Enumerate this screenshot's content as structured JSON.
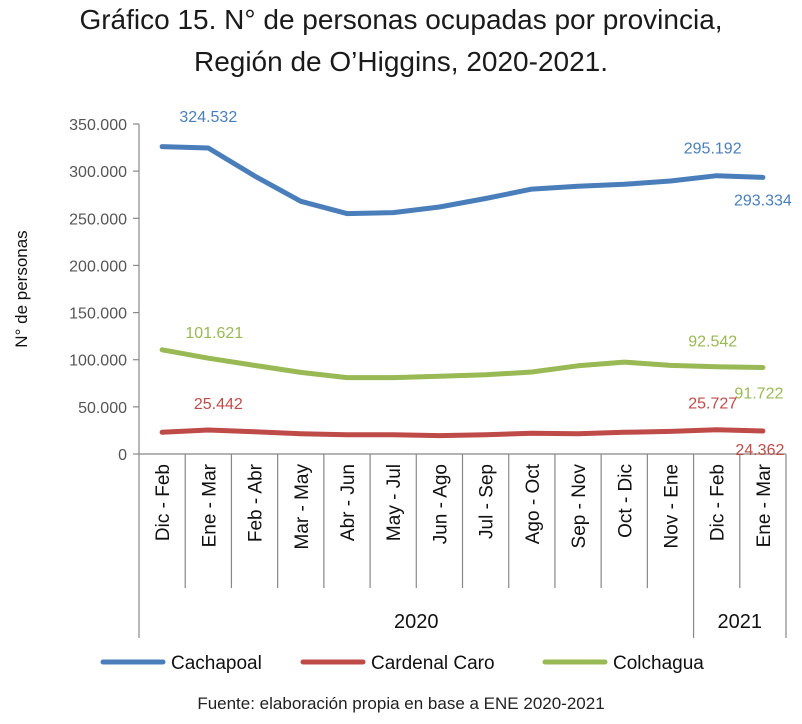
{
  "title_line1": "Gráfico 15. N° de personas ocupadas por provincia,",
  "title_line2": "Región de O’Higgins, 2020-2021.",
  "source": "Fuente: elaboración propia en base a ENE 2020-2021",
  "chart_data": {
    "type": "line",
    "categories": [
      "Dic - Feb",
      "Ene - Mar",
      "Feb - Abr",
      "Mar - May",
      "Abr - Jun",
      "May - Jul",
      "Jun - Ago",
      "Jul - Sep",
      "Ago - Oct",
      "Sep - Nov",
      "Oct - Dic",
      "Nov - Ene",
      "Dic - Feb",
      "Ene - Mar"
    ],
    "year_groups": [
      {
        "label": "2020",
        "from_index": 0,
        "to_index": 11
      },
      {
        "label": "2021",
        "from_index": 12,
        "to_index": 13
      }
    ],
    "ylabel": "N° de personas",
    "ylim": [
      0,
      350000
    ],
    "yticks": [
      0,
      50000,
      100000,
      150000,
      200000,
      250000,
      300000,
      350000
    ],
    "ytick_labels": [
      "0",
      "50.000",
      "100.000",
      "150.000",
      "200.000",
      "250.000",
      "300.000",
      "350.000"
    ],
    "grid": false,
    "legend_position": "bottom",
    "series": [
      {
        "name": "Cachapoal",
        "color": "#4a7ebb",
        "values": [
          326000,
          324532,
          295000,
          268000,
          255000,
          256000,
          262000,
          271000,
          281000,
          284000,
          286000,
          289500,
          295192,
          293334
        ]
      },
      {
        "name": "Cardenal Caro",
        "color": "#be4b48",
        "values": [
          23000,
          25442,
          23500,
          21500,
          20500,
          20500,
          19500,
          20500,
          22000,
          21500,
          23000,
          24000,
          25727,
          24362
        ]
      },
      {
        "name": "Colchagua",
        "color": "#98b954",
        "values": [
          110500,
          101621,
          94000,
          86500,
          81000,
          81000,
          82500,
          84000,
          87000,
          93500,
          97500,
          94000,
          92542,
          91722
        ]
      }
    ],
    "annotations": [
      {
        "series": 0,
        "index": 1,
        "text": "324.532"
      },
      {
        "series": 0,
        "index": 12,
        "text": "295.192"
      },
      {
        "series": 0,
        "index": 13,
        "text": "293.334"
      },
      {
        "series": 2,
        "index": 1,
        "text": "101.621"
      },
      {
        "series": 2,
        "index": 12,
        "text": "92.542"
      },
      {
        "series": 2,
        "index": 13,
        "text": "91.722"
      },
      {
        "series": 1,
        "index": 1,
        "text": "25.442"
      },
      {
        "series": 1,
        "index": 12,
        "text": "25.727"
      },
      {
        "series": 1,
        "index": 13,
        "text": "24.362"
      }
    ]
  }
}
